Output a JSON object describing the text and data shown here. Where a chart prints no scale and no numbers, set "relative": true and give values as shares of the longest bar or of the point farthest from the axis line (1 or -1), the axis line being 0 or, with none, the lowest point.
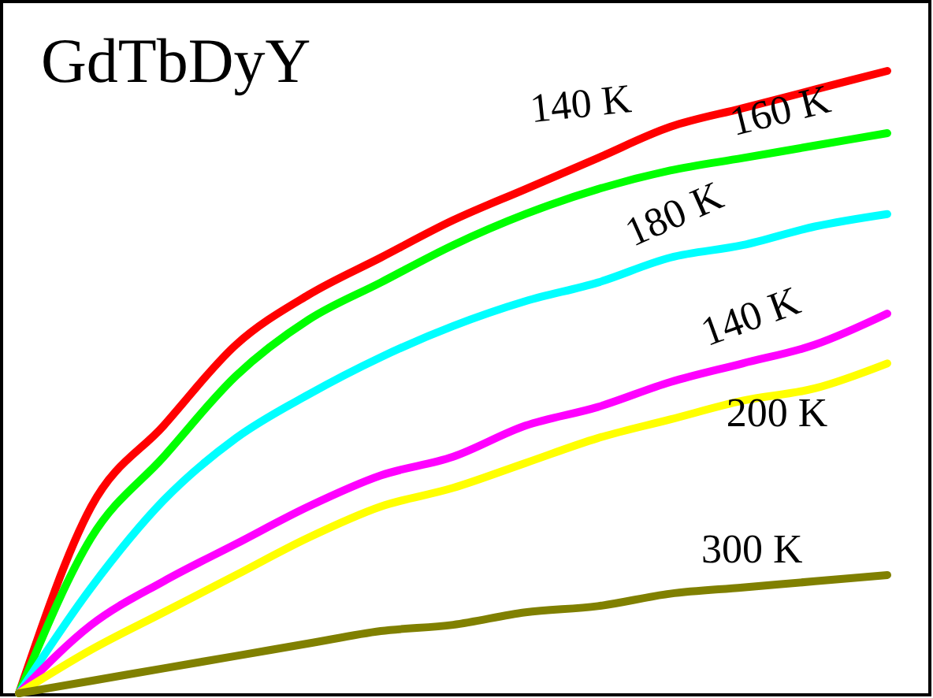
{
  "chart_data": {
    "type": "line",
    "title": "GdTbDyY",
    "relative": true,
    "line_style": "solid",
    "categories": [
      null,
      null,
      null,
      null,
      null,
      null,
      null,
      null,
      null,
      null,
      null,
      null,
      null
    ],
    "series": [
      {
        "name": "140 K",
        "color": "#ff0000",
        "values": [
          0,
          0.3,
          0.43,
          0.56,
          0.64,
          0.7,
          0.76,
          0.81,
          0.86,
          0.91,
          0.94,
          0.97,
          1
        ]
      },
      {
        "name": "160 K",
        "color": "#00ff00",
        "values": [
          0,
          0.25,
          0.38,
          0.51,
          0.6,
          0.66,
          0.72,
          0.77,
          0.81,
          0.84,
          0.86,
          0.88,
          0.9
        ]
      },
      {
        "name": "180 K",
        "color": "#00ffff",
        "values": [
          0,
          0.17,
          0.31,
          0.41,
          0.48,
          0.54,
          0.59,
          0.63,
          0.66,
          0.7,
          0.72,
          0.75,
          0.77
        ]
      },
      {
        "name": "140 K",
        "color": "#ff00ff",
        "values": [
          0,
          0.11,
          0.18,
          0.24,
          0.3,
          0.35,
          0.38,
          0.43,
          0.46,
          0.5,
          0.53,
          0.56,
          0.61
        ]
      },
      {
        "name": "200 K",
        "color": "#ffff00",
        "values": [
          0,
          0.07,
          0.13,
          0.19,
          0.25,
          0.3,
          0.33,
          0.37,
          0.41,
          0.44,
          0.47,
          0.49,
          0.53
        ]
      },
      {
        "name": "300 K",
        "color": "#808000",
        "values": [
          0,
          0.02,
          0.04,
          0.06,
          0.08,
          0.1,
          0.11,
          0.13,
          0.14,
          0.16,
          0.17,
          0.18,
          0.19
        ]
      }
    ]
  }
}
